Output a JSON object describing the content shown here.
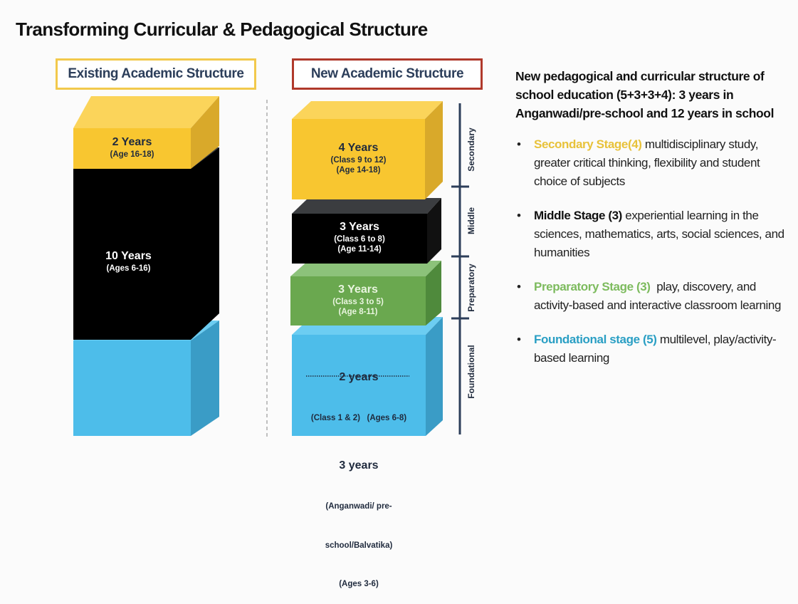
{
  "title": "Transforming Curricular & Pedagogical Structure",
  "existing": {
    "header": "Existing Academic Structure",
    "blocks": [
      {
        "years": "2 Years",
        "detail": "(Age 16-18)",
        "color": "#f8c630"
      },
      {
        "years": "10 Years",
        "detail": "(Ages 6-16)",
        "color": "#000000"
      },
      {
        "years": "",
        "detail": "",
        "color": "#4dbdea"
      }
    ]
  },
  "new": {
    "header": "New Academic Structure",
    "blocks": [
      {
        "years": "4 Years",
        "line1": "(Class 9 to 12)",
        "line2": "(Age 14-18)",
        "color": "#f8c630"
      },
      {
        "years": "3 Years",
        "line1": "(Class 6 to 8)",
        "line2": "(Age 11-14)",
        "color": "#000000"
      },
      {
        "years": "3 Years",
        "line1": "(Class 3 to 5)",
        "line2": "(Age 8-11)",
        "color": "#6aa84f"
      },
      {
        "years": "2 years",
        "line1": "(Class 1 & 2)   (Ages 6-8)",
        "years2": "3 years",
        "line2": "(Anganwadi/ pre-",
        "line3": "school/Balvatika)",
        "line4": "(Ages 3-6)",
        "color": "#4dbdea"
      }
    ],
    "stages": [
      "Secondary",
      "Middle",
      "Preparatory",
      "Foundational"
    ]
  },
  "description": {
    "heading": "New pedagogical and curricular structure of school education (5+3+3+4): 3 years in Anganwadi/pre-school and 12 years in school",
    "bullets": [
      {
        "label": "Secondary Stage(4)",
        "text": " multidisciplinary study, greater critical thinking, flexibility and student choice of subjects",
        "color": "#e8c23a"
      },
      {
        "label": "Middle Stage (3)",
        "text": " experiential learning in the sciences, mathematics, arts, social sciences, and humanities",
        "color": "#111111"
      },
      {
        "label": "Preparatory Stage (3)",
        "text": "  play, discovery, and activity-based and interactive classroom learning",
        "color": "#7dbb5e"
      },
      {
        "label": "Foundational stage (5)",
        "text": " multilevel, play/activity-based learning",
        "color": "#2a9fc4"
      }
    ],
    "bullet_symbol": "•"
  }
}
